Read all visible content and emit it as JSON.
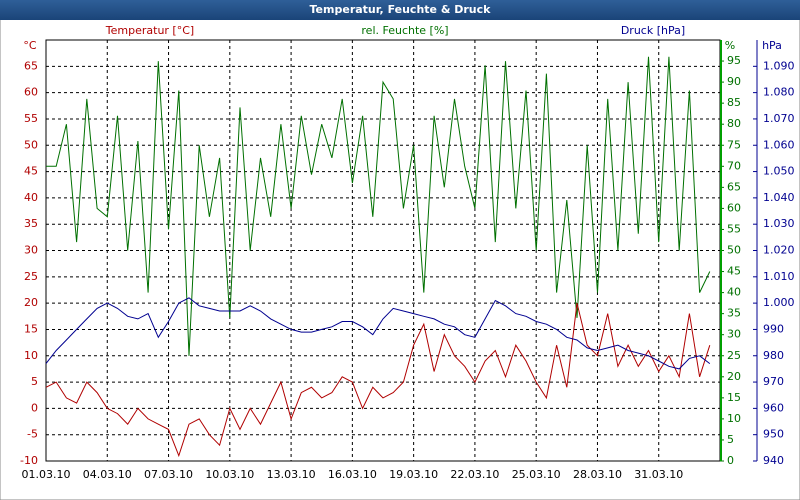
{
  "chart_data": {
    "type": "line",
    "title": "Temperatur, Feuchte & Druck",
    "grid": true,
    "x": [
      0,
      0.5,
      1,
      1.5,
      2,
      2.5,
      3,
      3.5,
      4,
      4.5,
      5,
      5.5,
      6,
      6.5,
      7,
      7.5,
      8,
      8.5,
      9,
      9.5,
      10,
      10.5,
      11,
      11.5,
      12,
      12.5,
      13,
      13.5,
      14,
      14.5,
      15,
      15.5,
      16,
      16.5,
      17,
      17.5,
      18,
      18.5,
      19,
      19.5,
      20,
      20.5,
      21,
      21.5,
      22,
      22.5,
      23,
      23.5,
      24,
      24.5,
      25,
      25.5,
      26,
      26.5,
      27,
      27.5,
      28,
      28.5,
      29,
      29.5,
      30,
      30.5,
      31,
      31.5,
      32,
      32.5
    ],
    "xlim": [
      0,
      33
    ],
    "xticks": [
      {
        "value": 0,
        "label": "01.03.10"
      },
      {
        "value": 3,
        "label": "04.03.10"
      },
      {
        "value": 6,
        "label": "07.03.10"
      },
      {
        "value": 9,
        "label": "10.03.10"
      },
      {
        "value": 12,
        "label": "13.03.10"
      },
      {
        "value": 15,
        "label": "16.03.10"
      },
      {
        "value": 18,
        "label": "19.03.10"
      },
      {
        "value": 21,
        "label": "22.03.10"
      },
      {
        "value": 24,
        "label": "25.03.10"
      },
      {
        "value": 27,
        "label": "28.03.10"
      },
      {
        "value": 30,
        "label": "31.03.10"
      }
    ],
    "ylabel": "Temperatur [°C]",
    "yunit": "°C",
    "ylim": [
      -10,
      70
    ],
    "yticks": [
      -10,
      -5,
      0,
      5,
      10,
      15,
      20,
      25,
      30,
      35,
      40,
      45,
      50,
      55,
      60,
      65
    ],
    "y2label": "rel. Feuchte [%]",
    "y2unit": "%",
    "y2lim": [
      0,
      100
    ],
    "y2ticks": [
      0,
      5,
      10,
      15,
      20,
      25,
      30,
      35,
      40,
      45,
      50,
      55,
      60,
      65,
      70,
      75,
      80,
      85,
      90,
      95
    ],
    "y3label": "Druck [hPa]",
    "y3unit": "hPa",
    "y3lim": [
      940,
      1100
    ],
    "y3ticks": [
      940,
      950,
      960,
      970,
      980,
      990,
      {
        "value": 1000,
        "label": "1.000"
      },
      {
        "value": 1010,
        "label": "1.010"
      },
      {
        "value": 1020,
        "label": "1.020"
      },
      {
        "value": 1030,
        "label": "1.030"
      },
      {
        "value": 1040,
        "label": "1.040"
      },
      {
        "value": 1050,
        "label": "1.050"
      },
      {
        "value": 1060,
        "label": "1.060"
      },
      {
        "value": 1070,
        "label": "1.070"
      },
      {
        "value": 1080,
        "label": "1.080"
      },
      {
        "value": 1090,
        "label": "1.090"
      }
    ],
    "series": [
      {
        "axis": "y2",
        "color": "#007000",
        "values": [
          70,
          70,
          80,
          52,
          86,
          60,
          58,
          82,
          50,
          76,
          40,
          95,
          55,
          88,
          25,
          75,
          58,
          72,
          34,
          84,
          50,
          72,
          58,
          80,
          60,
          82,
          68,
          80,
          72,
          86,
          66,
          82,
          58,
          90,
          86,
          60,
          75,
          40,
          82,
          65,
          86,
          70,
          60,
          94,
          52,
          95,
          60,
          88,
          50,
          92,
          40,
          62,
          34,
          75,
          40,
          86,
          50,
          90,
          54,
          96,
          52,
          96,
          50,
          88,
          40,
          45
        ]
      },
      {
        "axis": "y",
        "color": "#b00000",
        "values": [
          4,
          5,
          2,
          1,
          5,
          3,
          0,
          -1,
          -3,
          0,
          -2,
          -3,
          -4,
          -9,
          -3,
          -2,
          -5,
          -7,
          0,
          -4,
          0,
          -3,
          1,
          5,
          -2,
          3,
          4,
          2,
          3,
          6,
          5,
          0,
          4,
          2,
          3,
          5,
          12,
          16,
          7,
          14,
          10,
          8,
          5,
          9,
          11,
          6,
          12,
          9,
          5,
          2,
          12,
          4,
          20,
          12,
          10,
          18,
          8,
          12,
          8,
          11,
          7,
          10,
          6,
          18,
          6,
          12
        ]
      },
      {
        "axis": "y3",
        "color": "#000090",
        "values": [
          977,
          982,
          986,
          990,
          994,
          998,
          1000,
          998,
          995,
          994,
          996,
          987,
          993,
          1000,
          1002,
          999,
          998,
          997,
          997,
          997,
          999,
          997,
          994,
          992,
          990,
          989,
          989,
          990,
          991,
          993,
          993,
          991,
          988,
          994,
          998,
          997,
          996,
          995,
          994,
          992,
          991,
          988,
          987,
          994,
          1001,
          999,
          996,
          995,
          993,
          992,
          990,
          987,
          986,
          983,
          982,
          983,
          984,
          982,
          981,
          980,
          978,
          976,
          975,
          979,
          980,
          977
        ]
      }
    ]
  }
}
